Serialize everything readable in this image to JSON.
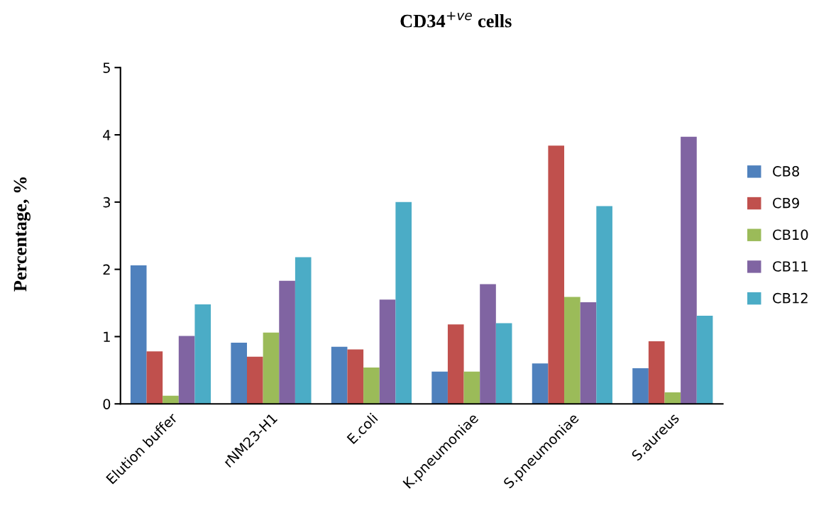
{
  "chart_data": {
    "type": "bar",
    "title": "CD34$^{+ve}$ cells",
    "ylabel": "Percentage, %",
    "categories": [
      "Elution buffer",
      "rNM23-H1",
      "E.coli",
      "K.pneumoniae",
      "S.pneumoniae",
      "S.aureus"
    ],
    "series": [
      {
        "name": "CB8",
        "color": "#4f81bd",
        "values": [
          2.06,
          0.91,
          0.85,
          0.48,
          0.6,
          0.53
        ]
      },
      {
        "name": "CB9",
        "color": "#c0504d",
        "values": [
          0.78,
          0.7,
          0.81,
          1.18,
          3.84,
          0.93
        ]
      },
      {
        "name": "CB10",
        "color": "#9bbb59",
        "values": [
          0.12,
          1.06,
          0.54,
          0.48,
          1.59,
          0.17
        ]
      },
      {
        "name": "CB11",
        "color": "#8064a2",
        "values": [
          1.01,
          1.83,
          1.55,
          1.78,
          1.51,
          3.97
        ]
      },
      {
        "name": "CB12",
        "color": "#4bacc6",
        "values": [
          1.48,
          2.18,
          3.0,
          1.2,
          2.94,
          1.31
        ]
      }
    ],
    "ylim": [
      0,
      5
    ],
    "yticks": [
      0,
      1,
      2,
      3,
      4,
      5
    ],
    "grid": false,
    "legend": "right"
  }
}
